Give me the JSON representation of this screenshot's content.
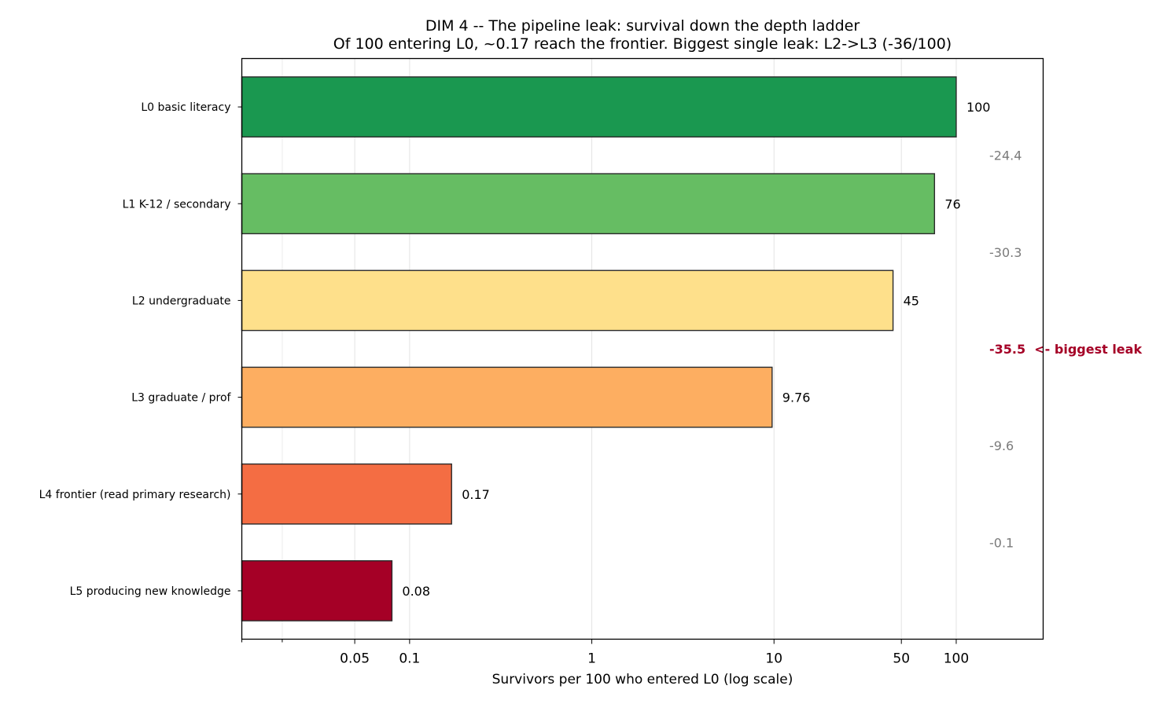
{
  "chart_data": {
    "type": "bar",
    "orientation": "horizontal",
    "title": "DIM 4 -- The pipeline leak: survival down the depth ladder",
    "subtitle": "Of 100 entering L0, ~0.17 reach the frontier. Biggest single leak: L2->L3 (-36/100)",
    "xlabel": "Survivors per 100 who entered L0 (log scale)",
    "ylabel": "",
    "xscale": "log",
    "xlim": [
      0.012,
      300
    ],
    "grid": "x",
    "x_ticks": [
      0.05,
      0.1,
      1,
      10,
      50,
      100
    ],
    "x_tick_labels": [
      "0.05",
      "0.1",
      "1",
      "10",
      "50",
      "100"
    ],
    "x_minor_ticks": [
      0.02
    ],
    "categories": [
      "L0 basic literacy",
      "L1 K-12 / secondary",
      "L2 undergraduate",
      "L3 graduate / prof",
      "L4 frontier (read primary research)",
      "L5 producing new knowledge"
    ],
    "values": [
      100,
      76,
      45,
      9.76,
      0.17,
      0.08
    ],
    "value_labels": [
      "100",
      "76",
      "45",
      "9.76",
      "0.17",
      "0.08"
    ],
    "colors": [
      "#1a9850",
      "#66bd63",
      "#fee08b",
      "#fdae61",
      "#f46d43",
      "#a50026"
    ],
    "drops": [
      {
        "label": "-24.4",
        "highlight": false
      },
      {
        "label": "-30.3",
        "highlight": false
      },
      {
        "label": "-35.5  <- biggest leak",
        "highlight": true
      },
      {
        "label": "-9.6",
        "highlight": false
      },
      {
        "label": "-0.1",
        "highlight": false
      }
    ]
  }
}
